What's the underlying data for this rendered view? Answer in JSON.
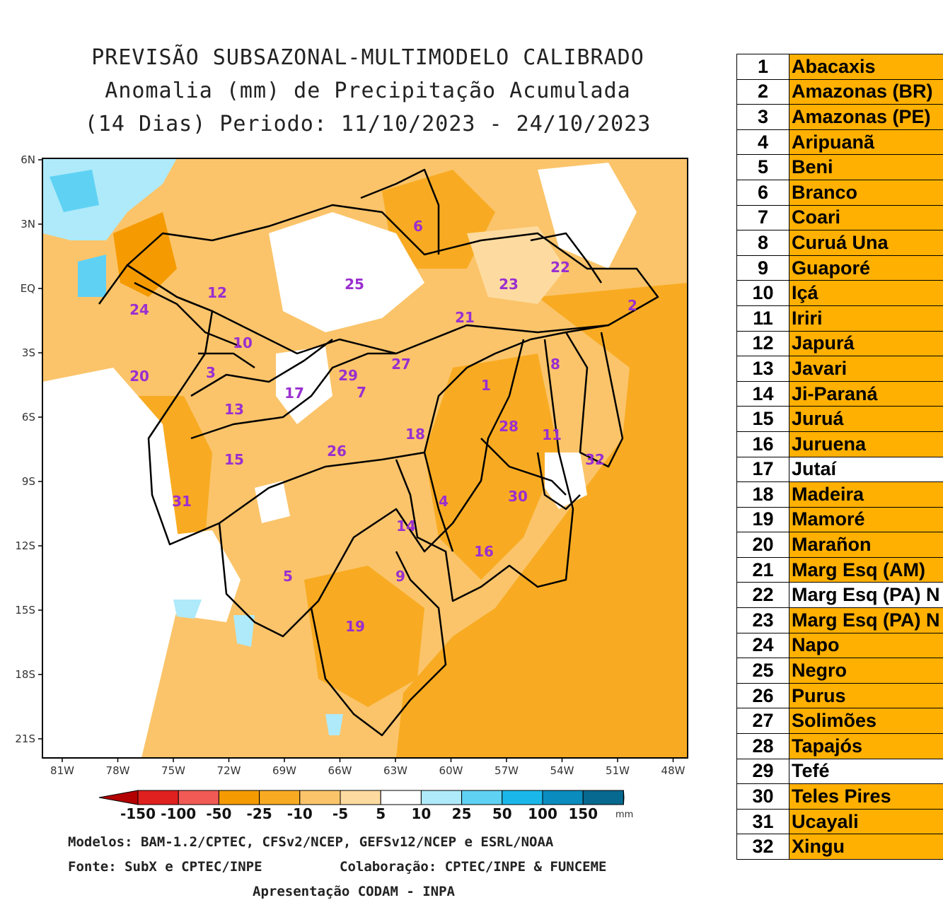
{
  "title": {
    "line1": "PREVISÃO SUBSAZONAL-MULTIMODELO CALIBRADO",
    "line2": "Anomalia (mm) de Precipitação Acumulada",
    "line3": "(14 Dias) Periodo: 11/10/2023 - 24/10/2023"
  },
  "map": {
    "lat_labels": [
      "6N",
      "3N",
      "EQ",
      "3S",
      "6S",
      "9S",
      "12S",
      "15S",
      "18S",
      "21S"
    ],
    "lon_labels": [
      "81W",
      "78W",
      "75W",
      "72W",
      "69W",
      "66W",
      "63W",
      "60W",
      "57W",
      "54W",
      "51W",
      "48W"
    ],
    "basin_labels": [
      "1",
      "2",
      "3",
      "4",
      "5",
      "6",
      "7",
      "8",
      "9",
      "10",
      "11",
      "12",
      "13",
      "14",
      "15",
      "16",
      "17",
      "18",
      "19",
      "20",
      "21",
      "22",
      "23",
      "24",
      "25",
      "26",
      "27",
      "28",
      "29",
      "30",
      "31",
      "32"
    ]
  },
  "colorbar": {
    "labels": [
      "-150",
      "-100",
      "-50",
      "-25",
      "-10",
      "-5",
      "5",
      "10",
      "25",
      "50",
      "100",
      "150"
    ],
    "unit": "mm",
    "colors": [
      "#b30000",
      "#e0201e",
      "#f25a55",
      "#f59a00",
      "#f8ab22",
      "#fbc46a",
      "#fddba0",
      "#ffffff",
      "#aeeafa",
      "#5fd2f4",
      "#1ab8ea",
      "#0a8cbf",
      "#07698f",
      "#044a66"
    ]
  },
  "footer": {
    "models": "Modelos: BAM-1.2/CPTEC, CFSv2/NCEP, GEFSv12/NCEP e ESRL/NOAA",
    "source": "Fonte: SubX e CPTEC/INPE",
    "collab": "Colaboração: CPTEC/INPE & FUNCEME",
    "presentation": "Apresentação CODAM - INPA"
  },
  "basin_table": {
    "highlight_color": "#ffb000",
    "rows": [
      {
        "num": "1",
        "name": "Abacaxis",
        "highlight": true
      },
      {
        "num": "2",
        "name": "Amazonas (BR)",
        "highlight": true
      },
      {
        "num": "3",
        "name": "Amazonas (PE)",
        "highlight": true
      },
      {
        "num": "4",
        "name": "Aripuanã",
        "highlight": true
      },
      {
        "num": "5",
        "name": "Beni",
        "highlight": true
      },
      {
        "num": "6",
        "name": "Branco",
        "highlight": true
      },
      {
        "num": "7",
        "name": "Coari",
        "highlight": true
      },
      {
        "num": "8",
        "name": "Curuá Una",
        "highlight": true
      },
      {
        "num": "9",
        "name": "Guaporé",
        "highlight": true
      },
      {
        "num": "10",
        "name": "Içá",
        "highlight": true
      },
      {
        "num": "11",
        "name": "Iriri",
        "highlight": true
      },
      {
        "num": "12",
        "name": "Japurá",
        "highlight": true
      },
      {
        "num": "13",
        "name": "Javari",
        "highlight": true
      },
      {
        "num": "14",
        "name": "Ji-Paraná",
        "highlight": true
      },
      {
        "num": "15",
        "name": "Juruá",
        "highlight": true
      },
      {
        "num": "16",
        "name": "Juruena",
        "highlight": true
      },
      {
        "num": "17",
        "name": "Jutaí",
        "highlight": false
      },
      {
        "num": "18",
        "name": "Madeira",
        "highlight": true
      },
      {
        "num": "19",
        "name": "Mamoré",
        "highlight": true
      },
      {
        "num": "20",
        "name": "Marañon",
        "highlight": true
      },
      {
        "num": "21",
        "name": "Marg Esq (AM)",
        "highlight": true
      },
      {
        "num": "22",
        "name": "Marg Esq (PA) N",
        "highlight": false
      },
      {
        "num": "23",
        "name": "Marg Esq (PA) N",
        "highlight": true
      },
      {
        "num": "24",
        "name": "Napo",
        "highlight": true
      },
      {
        "num": "25",
        "name": "Negro",
        "highlight": true
      },
      {
        "num": "26",
        "name": "Purus",
        "highlight": true
      },
      {
        "num": "27",
        "name": "Solimões",
        "highlight": true
      },
      {
        "num": "28",
        "name": "Tapajós",
        "highlight": true
      },
      {
        "num": "29",
        "name": "Tefé",
        "highlight": false
      },
      {
        "num": "30",
        "name": "Teles Pires",
        "highlight": true
      },
      {
        "num": "31",
        "name": "Ucayali",
        "highlight": true
      },
      {
        "num": "32",
        "name": "Xingu",
        "highlight": true
      }
    ]
  }
}
